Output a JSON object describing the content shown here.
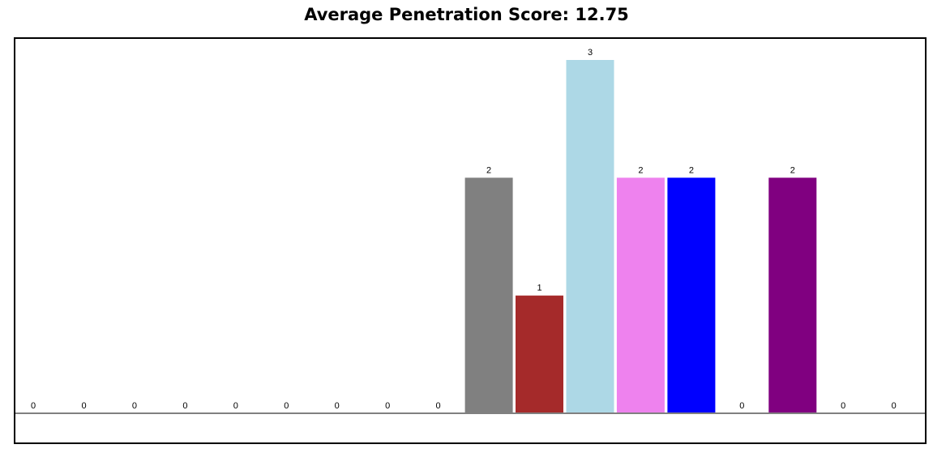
{
  "chart_data": {
    "type": "bar",
    "title": "Average Penetration Score: 12.75",
    "xlabel": "",
    "ylabel": "",
    "ylim": [
      0,
      3
    ],
    "grid": false,
    "legend": "none",
    "values": [
      0,
      0,
      0,
      0,
      0,
      0,
      0,
      0,
      0,
      2,
      1,
      3,
      2,
      2,
      0,
      2,
      0,
      0
    ],
    "colors": [
      "#808080",
      "#808080",
      "#808080",
      "#808080",
      "#808080",
      "#808080",
      "#808080",
      "#808080",
      "#808080",
      "#808080",
      "#a52a2a",
      "#add8e6",
      "#ee82ee",
      "#0000ff",
      "#808080",
      "#800080",
      "#808080",
      "#808080"
    ]
  }
}
